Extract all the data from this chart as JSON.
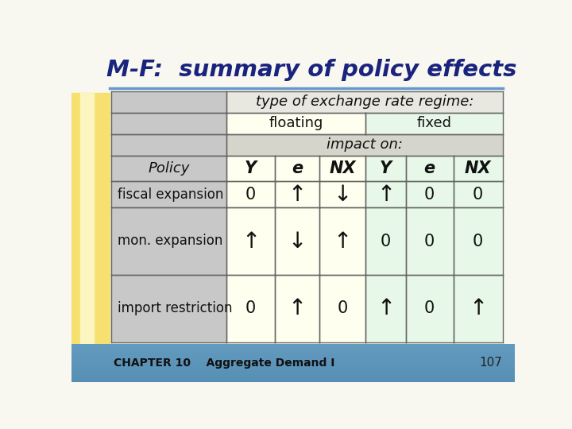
{
  "title": "M-F:  summary of policy effects",
  "title_color": "#1a237e",
  "slide_bg": "#f8f8f0",
  "left_bar_color": "#f5e070",
  "footer_bg_top": "#7ab0d4",
  "footer_bg_bot": "#4a80b0",
  "footer_text": "CHAPTER 10    Aggregate Demand I",
  "footer_page": "107",
  "line_color": "#6699cc",
  "table": {
    "header_row1": "type of exchange rate regime:",
    "header_floating": "floating",
    "header_fixed": "fixed",
    "header_impact": "impact on:",
    "floating_bg": "#fffff0",
    "fixed_bg": "#e8f8e8",
    "gray_bg": "#c8c8c8",
    "white_bg": "#e8e8e8",
    "border_color": "#666666",
    "data": [
      [
        "Y",
        "e",
        "NX",
        "Y",
        "e",
        "NX"
      ],
      [
        "0",
        "↑",
        "↓",
        "↑",
        "0",
        "0"
      ],
      [
        "↑",
        "↓",
        "↑",
        "0",
        "0",
        "0"
      ],
      [
        "0",
        "↑",
        "0",
        "↑",
        "0",
        "↑"
      ]
    ],
    "row_labels": [
      "Policy",
      "fiscal expansion",
      "mon. expansion",
      "import restriction"
    ]
  }
}
